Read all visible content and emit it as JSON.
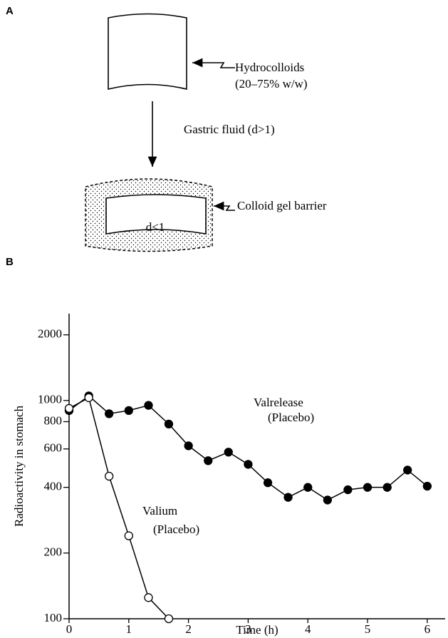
{
  "panel_a": {
    "label": "A",
    "top_label_1": "Hydrocolloids",
    "top_label_2": "(20–75% w/w)",
    "arrow_label": "Gastric fluid (d>1)",
    "gel_label": "Colloid gel barrier",
    "density_label": "d<1"
  },
  "panel_b": {
    "label": "B"
  },
  "chart_data": {
    "type": "line",
    "x_label": "Time (h)",
    "y_label": "Radioactivity in stomach",
    "log_y": true,
    "xlim": [
      0,
      6.3
    ],
    "xticks": [
      0,
      1,
      2,
      3,
      4,
      5,
      6
    ],
    "ylim": [
      100,
      2500
    ],
    "yticks": [
      100,
      200,
      400,
      600,
      800,
      1000,
      2000
    ],
    "series": [
      {
        "color": "#000000",
        "marker_fill": "#000000",
        "x": [
          0,
          0.33,
          0.67,
          1,
          1.33,
          1.67,
          2,
          2.33,
          2.67,
          3,
          3.33,
          3.67,
          4,
          4.33,
          4.67,
          5,
          5.33,
          5.67,
          6
        ],
        "values": [
          900,
          1050,
          870,
          900,
          950,
          780,
          620,
          530,
          580,
          510,
          420,
          360,
          400,
          350,
          390,
          400,
          400,
          480,
          405
        ]
      },
      {
        "color": "#000000",
        "marker_fill": "#ffffff",
        "x": [
          0,
          0.33,
          0.67,
          1,
          1.33,
          1.67
        ],
        "values": [
          920,
          1030,
          450,
          240,
          125,
          100
        ]
      }
    ],
    "annotations": [
      "Valrelease",
      "(Placebo)",
      "Valium",
      "(Placebo)"
    ]
  }
}
